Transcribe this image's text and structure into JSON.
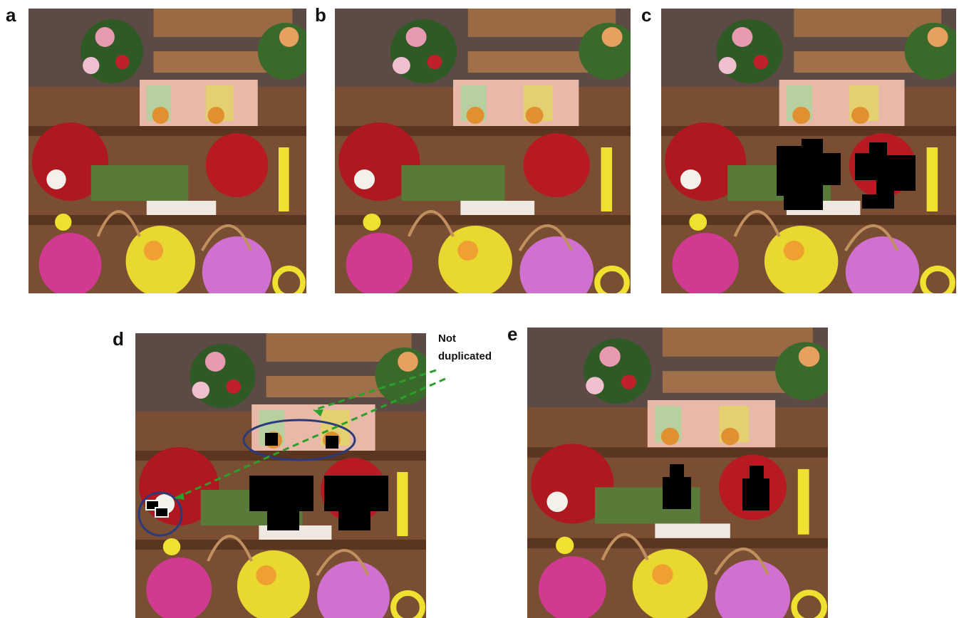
{
  "panels": [
    "a",
    "b",
    "c",
    "d",
    "e"
  ],
  "annotation": {
    "lines": [
      "Not",
      "duplicated"
    ]
  }
}
